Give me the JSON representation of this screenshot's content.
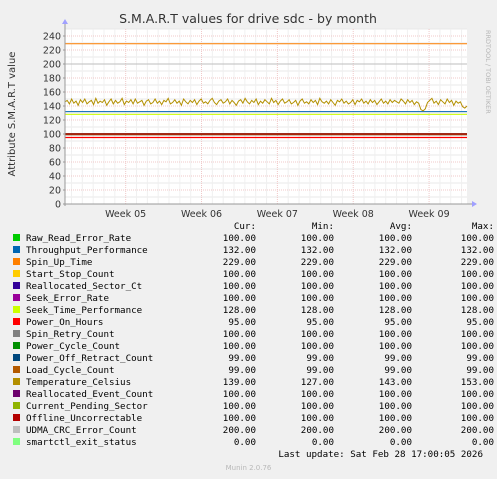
{
  "chart_data": {
    "type": "line",
    "title": "S.M.A.R.T values for drive sdc - by month",
    "ylabel": "Attribute S.M.A.R.T value",
    "watermark": "RRDTOOL / TOBI OETIKER",
    "xlim_weeks": [
      4.2,
      9.5
    ],
    "ylim": [
      0,
      250
    ],
    "yticks": [
      0,
      20,
      40,
      60,
      80,
      100,
      120,
      140,
      160,
      180,
      200,
      220,
      240
    ],
    "xticks": [
      {
        "label": "Week 05",
        "value": 5
      },
      {
        "label": "Week 06",
        "value": 6
      },
      {
        "label": "Week 07",
        "value": 7
      },
      {
        "label": "Week 08",
        "value": 8
      },
      {
        "label": "Week 09",
        "value": 9
      }
    ],
    "grid": true,
    "columns": [
      "Cur:",
      "Min:",
      "Avg:",
      "Max:"
    ],
    "series": [
      {
        "name": "Raw_Read_Error_Rate",
        "color": "#00cc00",
        "cur": "100.00",
        "min": "100.00",
        "avg": "100.00",
        "max": "100.00",
        "value": 100
      },
      {
        "name": "Throughput_Performance",
        "color": "#0066b3",
        "cur": "132.00",
        "min": "132.00",
        "avg": "132.00",
        "max": "132.00",
        "value": 132
      },
      {
        "name": "Spin_Up_Time",
        "color": "#ff8000",
        "cur": "229.00",
        "min": "229.00",
        "avg": "229.00",
        "max": "229.00",
        "value": 229
      },
      {
        "name": "Start_Stop_Count",
        "color": "#ffcc00",
        "cur": "100.00",
        "min": "100.00",
        "avg": "100.00",
        "max": "100.00",
        "value": 100
      },
      {
        "name": "Reallocated_Sector_Ct",
        "color": "#330099",
        "cur": "100.00",
        "min": "100.00",
        "avg": "100.00",
        "max": "100.00",
        "value": 100
      },
      {
        "name": "Seek_Error_Rate",
        "color": "#990099",
        "cur": "100.00",
        "min": "100.00",
        "avg": "100.00",
        "max": "100.00",
        "value": 100
      },
      {
        "name": "Seek_Time_Performance",
        "color": "#ccff00",
        "cur": "128.00",
        "min": "128.00",
        "avg": "128.00",
        "max": "128.00",
        "value": 128
      },
      {
        "name": "Power_On_Hours",
        "color": "#ff0000",
        "cur": "95.00",
        "min": "95.00",
        "avg": "95.00",
        "max": "95.00",
        "value": 95
      },
      {
        "name": "Spin_Retry_Count",
        "color": "#808080",
        "cur": "100.00",
        "min": "100.00",
        "avg": "100.00",
        "max": "100.00",
        "value": 100
      },
      {
        "name": "Power_Cycle_Count",
        "color": "#008f00",
        "cur": "100.00",
        "min": "100.00",
        "avg": "100.00",
        "max": "100.00",
        "value": 100
      },
      {
        "name": "Power_Off_Retract_Count",
        "color": "#00487d",
        "cur": "99.00",
        "min": "99.00",
        "avg": "99.00",
        "max": "99.00",
        "value": 99
      },
      {
        "name": "Load_Cycle_Count",
        "color": "#b35a00",
        "cur": "99.00",
        "min": "99.00",
        "avg": "99.00",
        "max": "99.00",
        "value": 99
      },
      {
        "name": "Temperature_Celsius",
        "color": "#b38f00",
        "cur": "139.00",
        "min": "127.00",
        "avg": "143.00",
        "max": "153.00",
        "value": 143
      },
      {
        "name": "Reallocated_Event_Count",
        "color": "#6b006b",
        "cur": "100.00",
        "min": "100.00",
        "avg": "100.00",
        "max": "100.00",
        "value": 100
      },
      {
        "name": "Current_Pending_Sector",
        "color": "#8fb300",
        "cur": "100.00",
        "min": "100.00",
        "avg": "100.00",
        "max": "100.00",
        "value": 100
      },
      {
        "name": "Offline_Uncorrectable",
        "color": "#b30000",
        "cur": "100.00",
        "min": "100.00",
        "avg": "100.00",
        "max": "100.00",
        "value": 100
      },
      {
        "name": "UDMA_CRC_Error_Count",
        "color": "#bebebe",
        "cur": "200.00",
        "min": "200.00",
        "avg": "200.00",
        "max": "200.00",
        "value": 200
      },
      {
        "name": "smartctl_exit_status",
        "color": "#80ff80",
        "cur": "0.00",
        "min": "0.00",
        "avg": "0.00",
        "max": "0.00",
        "value": 0
      }
    ],
    "temperature_trace": [
      146,
      148,
      143,
      150,
      144,
      147,
      141,
      149,
      145,
      150,
      143,
      146,
      148,
      142,
      151,
      144,
      147,
      145,
      149,
      141,
      146,
      150,
      143,
      148,
      144,
      146,
      151,
      142,
      147,
      145,
      149,
      143,
      150,
      144,
      146,
      148,
      141,
      147,
      149,
      143,
      145,
      150,
      144,
      147,
      142,
      148,
      146,
      151,
      143,
      145,
      149,
      144,
      147,
      141,
      150,
      146,
      143,
      148,
      145,
      149,
      142,
      147,
      150,
      144,
      146,
      143,
      148,
      151,
      145,
      142,
      147,
      149,
      144,
      146,
      150,
      143,
      148,
      145,
      141,
      147,
      149,
      144,
      151,
      146,
      143,
      148,
      145,
      150,
      142,
      147,
      144,
      149,
      146,
      143,
      151,
      145,
      148,
      142,
      147,
      150,
      144,
      146,
      149,
      143,
      145,
      148,
      141,
      147,
      150,
      144,
      146,
      143,
      149,
      145,
      148,
      142,
      151,
      146,
      144,
      147,
      143,
      149,
      145,
      141,
      148,
      146,
      150,
      144,
      147,
      143,
      145,
      149,
      142,
      148,
      146,
      150,
      144,
      147,
      143,
      149,
      145,
      148,
      142,
      146,
      150,
      144,
      147,
      143,
      149,
      145,
      148,
      146,
      144,
      150,
      147,
      143,
      149,
      145,
      148,
      142,
      146,
      144,
      135,
      133,
      136,
      145,
      148,
      151,
      144,
      147,
      142,
      149,
      146,
      143,
      150,
      145,
      148,
      141,
      147,
      144,
      146,
      139,
      137,
      140
    ]
  },
  "footer": {
    "last_update": "Last update: Sat Feb 28 17:00:05 2026",
    "munin_version": "Munin 2.0.76"
  }
}
